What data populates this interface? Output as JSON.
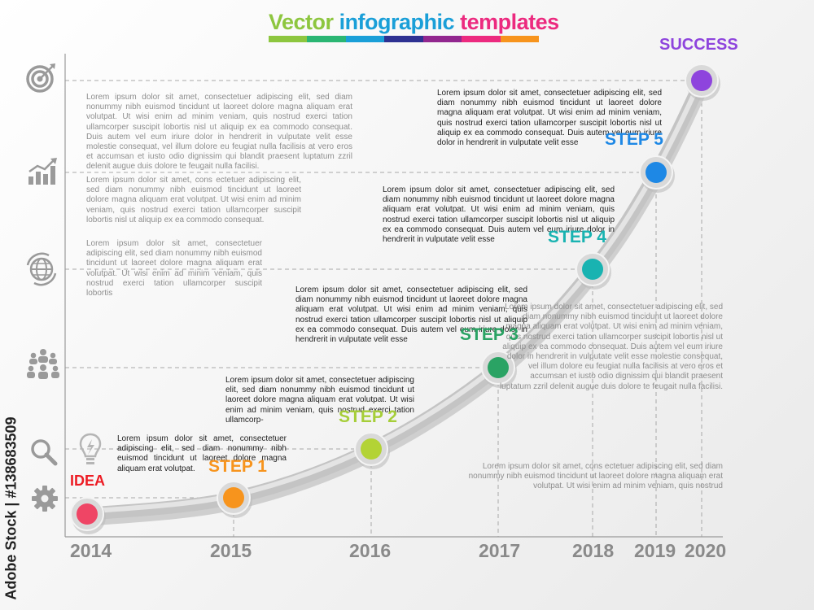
{
  "title": {
    "part1": "Vector",
    "part2": "infographic",
    "part3": "templates",
    "bar_colors": [
      "#8dc63f",
      "#2bb673",
      "#1a9fd8",
      "#2e3192",
      "#92278f",
      "#ec2a7f",
      "#f7941d"
    ]
  },
  "chart_data": {
    "type": "line",
    "x": [
      "2014",
      "2015",
      "2016",
      "2017",
      "2018",
      "2019",
      "2020"
    ],
    "milestones": [
      {
        "label": "IDEA",
        "year": "2014",
        "color": "#ef4565",
        "label_color": "#ed1c24"
      },
      {
        "label": "STEP 1",
        "year": "2015",
        "color": "#f7941d",
        "label_color": "#f7941d"
      },
      {
        "label": "STEP 2",
        "year": "2016",
        "color": "#b3d335",
        "label_color": "#a6ce39"
      },
      {
        "label": "STEP 3",
        "year": "2017",
        "color": "#2aa364",
        "label_color": "#2aa364"
      },
      {
        "label": "STEP 4",
        "year": "2018",
        "color": "#19b3b1",
        "label_color": "#19b3b1"
      },
      {
        "label": "STEP 5",
        "year": "2019",
        "color": "#1e88e5",
        "label_color": "#1e88e5"
      },
      {
        "label": "SUCCESS",
        "year": "2020",
        "color": "#8e44dd",
        "label_color": "#8e44dd"
      }
    ]
  },
  "texts": {
    "idea": "Lorem ipsum dolor sit amet, consectetuer adipiscing elit, sed diam nonummy nibh euismod tincidunt ut laoreet dolore magna aliquam erat volutpat.",
    "step1": "Lorem ipsum dolor sit amet, consectetuer adipiscing elit, sed diam nonummy nibh euismod tincidunt ut laoreet dolore magna aliquam erat volutpat. Ut wisi enim ad minim veniam, quis nostrud exerci tation ullamcorp-",
    "step2": "Lorem ipsum dolor sit amet, consectetuer adipiscing elit, sed diam nonummy nibh euismod tincidunt ut laoreet dolore magna aliquam erat volutpat. Ut wisi enim ad minim veniam, quis nostrud exerci tation ullamcorper suscipit lobortis nisl ut aliquip ex ea commodo consequat. Duis autem vel eum iriure dolor in hendrerit in vulputate velit esse",
    "step3": "Lorem ipsum dolor sit amet, consectetuer adipiscing elit, sed diam nonummy nibh euismod tincidunt ut laoreet dolore magna aliquam erat volutpat. Ut wisi enim ad minim veniam, quis nostrud exerci tation ullamcorper suscipit lobortis nisl ut aliquip ex ea commodo consequat. Duis autem vel eum iriure dolor in hendrerit in vulputate velit esse",
    "step4": "Lorem ipsum dolor sit amet, consectetuer adipiscing elit, sed diam nonummy nibh euismod tincidunt ut laoreet dolore magna aliquam erat volutpat. Ut wisi enim ad minim veniam, quis nostrud exerci tation ullamcorper suscipit lobortis nisl ut aliquip ex ea commodo consequat. Duis autem vel eum iriure dolor in hendrerit in vulputate velit esse",
    "grey_top": "Lorem ipsum dolor sit amet, consectetuer adipiscing elit, sed diam nonummy nibh euismod tincidunt ut laoreet dolore magna aliquam erat volutpat. Ut wisi enim ad minim veniam, quis nostrud exerci tation ullamcorper suscipit lobortis nisl ut aliquip ex ea commodo consequat. Duis autem vel eum iriure dolor in hendrerit in vulputate velit esse molestie consequat, vel illum dolore eu feugiat nulla facilisis at vero eros et accumsan et iusto odio dignissim qui blandit praesent luptatum zzril delenit augue duis dolore te feugait nulla facilisi.",
    "grey_mid1": "Lorem ipsum dolor sit amet, cons ectetuer adipiscing elit, sed diam nonummy nibh euismod tincidunt ut laoreet dolore magna aliquam erat volutpat. Ut wisi enim ad minim veniam, quis nostrud exerci tation ullamcorper suscipit lobortis nisl ut aliquip ex ea commodo consequat.",
    "grey_mid2": "Lorem ipsum dolor sit amet, consectetuer adipiscing elit, sed diam nonummy nibh euismod tincidunt ut laoreet dolore magna aliquam erat volutpat. Ut wisi enim ad minim veniam, quis nostrud exerci tation ullamcorper suscipit lobortis",
    "grey_right": "Lorem ipsum dolor sit amet, consectetuer adipiscing elit, sed diam nonummy nibh euismod tincidunt ut laoreet dolore magna aliquam erat volutpat. Ut wisi enim ad minim veniam, quis nostrud exerci tation ullamcorper suscipit lobortis nisl ut aliquip ex ea commodo consequat. Duis autem vel eum iriure dolor in hendrerit in vulputate velit esse molestie consequat, vel illum dolore eu feugiat nulla facilisis at vero eros et accumsan et iusto odio dignissim qui blandit praesent luptatum zzril delenit augue duis dolore te feugait nulla facilisi.",
    "grey_bottom": "Lorem ipsum dolor sit amet, cons ectetuer adipiscing elit, sed diam nonummy nibh euismod tincidunt ut laoreet dolore magna aliquam erat volutpat. Ut wisi enim ad minim veniam, quis nostrud"
  },
  "side_icons": [
    "target-icon",
    "growth-chart-icon",
    "globe-icon",
    "team-icon",
    "magnifier-icon",
    "gear-icon"
  ],
  "idea_icon": "lightbulb-icon",
  "watermark": "Adobe Stock | #138683509"
}
